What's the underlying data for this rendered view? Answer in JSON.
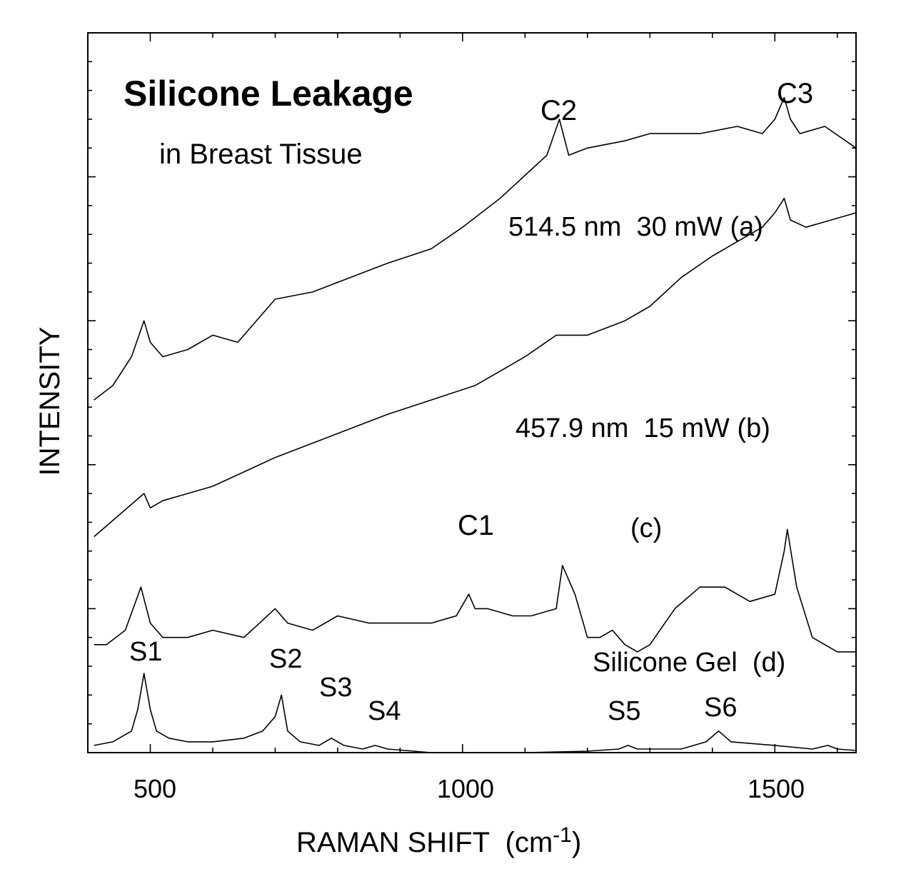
{
  "chart_data": {
    "type": "line",
    "title": "Silicone Leakage",
    "subtitle": "in Breast Tissue",
    "xlabel": "RAMAN SHIFT  (cm",
    "xlabel_sup": "-1",
    "xlabel_close": ")",
    "ylabel": "INTENSITY",
    "xlim": [
      400,
      1630
    ],
    "ylim": [
      0,
      100
    ],
    "y_ticks_labeled": false,
    "grid": false,
    "x_ticks": [
      500,
      1000,
      1500
    ],
    "x_tick_labels": [
      "500",
      "1000",
      "1500"
    ],
    "series": [
      {
        "name": "514.5 nm  30 mW (a)",
        "x": [
          410,
          440,
          470,
          490,
          500,
          520,
          560,
          600,
          640,
          700,
          760,
          820,
          880,
          950,
          1000,
          1060,
          1110,
          1135,
          1155,
          1170,
          1200,
          1260,
          1300,
          1380,
          1440,
          1480,
          1500,
          1515,
          1525,
          1540,
          1580,
          1630
        ],
        "y": [
          49,
          51,
          55,
          60,
          57,
          55,
          56,
          58,
          57,
          63,
          64,
          66,
          68,
          70,
          73,
          77,
          81,
          83,
          88,
          83,
          84,
          85,
          86,
          86,
          87,
          86,
          88,
          91,
          88,
          86,
          87,
          84
        ]
      },
      {
        "name": "457.9 nm  15 mW (b)",
        "x": [
          410,
          450,
          490,
          500,
          520,
          560,
          600,
          650,
          700,
          760,
          820,
          880,
          950,
          1020,
          1060,
          1100,
          1150,
          1200,
          1260,
          1300,
          1350,
          1400,
          1440,
          1480,
          1500,
          1515,
          1525,
          1550,
          1590,
          1630
        ],
        "y": [
          30,
          33,
          36,
          34,
          35,
          36,
          37,
          39,
          41,
          43,
          45,
          47,
          49,
          51,
          53,
          55,
          58,
          58,
          60,
          62,
          66,
          69,
          71,
          73,
          75,
          77,
          74,
          73,
          74,
          75
        ]
      },
      {
        "name": "(c)",
        "x": [
          410,
          430,
          460,
          485,
          500,
          520,
          560,
          600,
          650,
          700,
          720,
          760,
          800,
          850,
          900,
          950,
          990,
          1010,
          1020,
          1040,
          1080,
          1110,
          1150,
          1160,
          1180,
          1200,
          1220,
          1240,
          1260,
          1280,
          1300,
          1340,
          1380,
          1420,
          1460,
          1500,
          1515,
          1520,
          1535,
          1560,
          1600,
          1630
        ],
        "y": [
          15,
          15,
          17,
          23,
          18,
          16,
          16,
          17,
          16,
          20,
          18,
          17,
          19,
          18,
          18,
          18,
          19,
          22,
          20,
          20,
          19,
          19,
          20,
          26,
          22,
          16,
          16,
          17,
          15,
          14,
          15,
          20,
          23,
          23,
          21,
          22,
          28,
          31,
          23,
          16,
          14,
          14
        ]
      },
      {
        "name": "Silicone Gel  (d)",
        "x": [
          410,
          440,
          470,
          480,
          490,
          500,
          510,
          530,
          560,
          600,
          650,
          680,
          700,
          710,
          720,
          740,
          770,
          790,
          810,
          840,
          860,
          880,
          950,
          1000,
          1100,
          1200,
          1250,
          1265,
          1280,
          1350,
          1390,
          1410,
          1430,
          1500,
          1560,
          1585,
          1600,
          1630
        ],
        "y": [
          1,
          1.5,
          3,
          6,
          11,
          6,
          3,
          2,
          1.5,
          1.5,
          2,
          3,
          5,
          8,
          3,
          1.5,
          1,
          2,
          1,
          0.5,
          1,
          0.5,
          0,
          0,
          0,
          0.2,
          0.5,
          1,
          0.5,
          0.5,
          1.5,
          3,
          1.5,
          1,
          0.5,
          1,
          0.5,
          0.3
        ]
      }
    ],
    "annotations": [
      "C1",
      "C2",
      "C3",
      "S1",
      "S2",
      "S3",
      "S4",
      "S5",
      "S6"
    ]
  }
}
